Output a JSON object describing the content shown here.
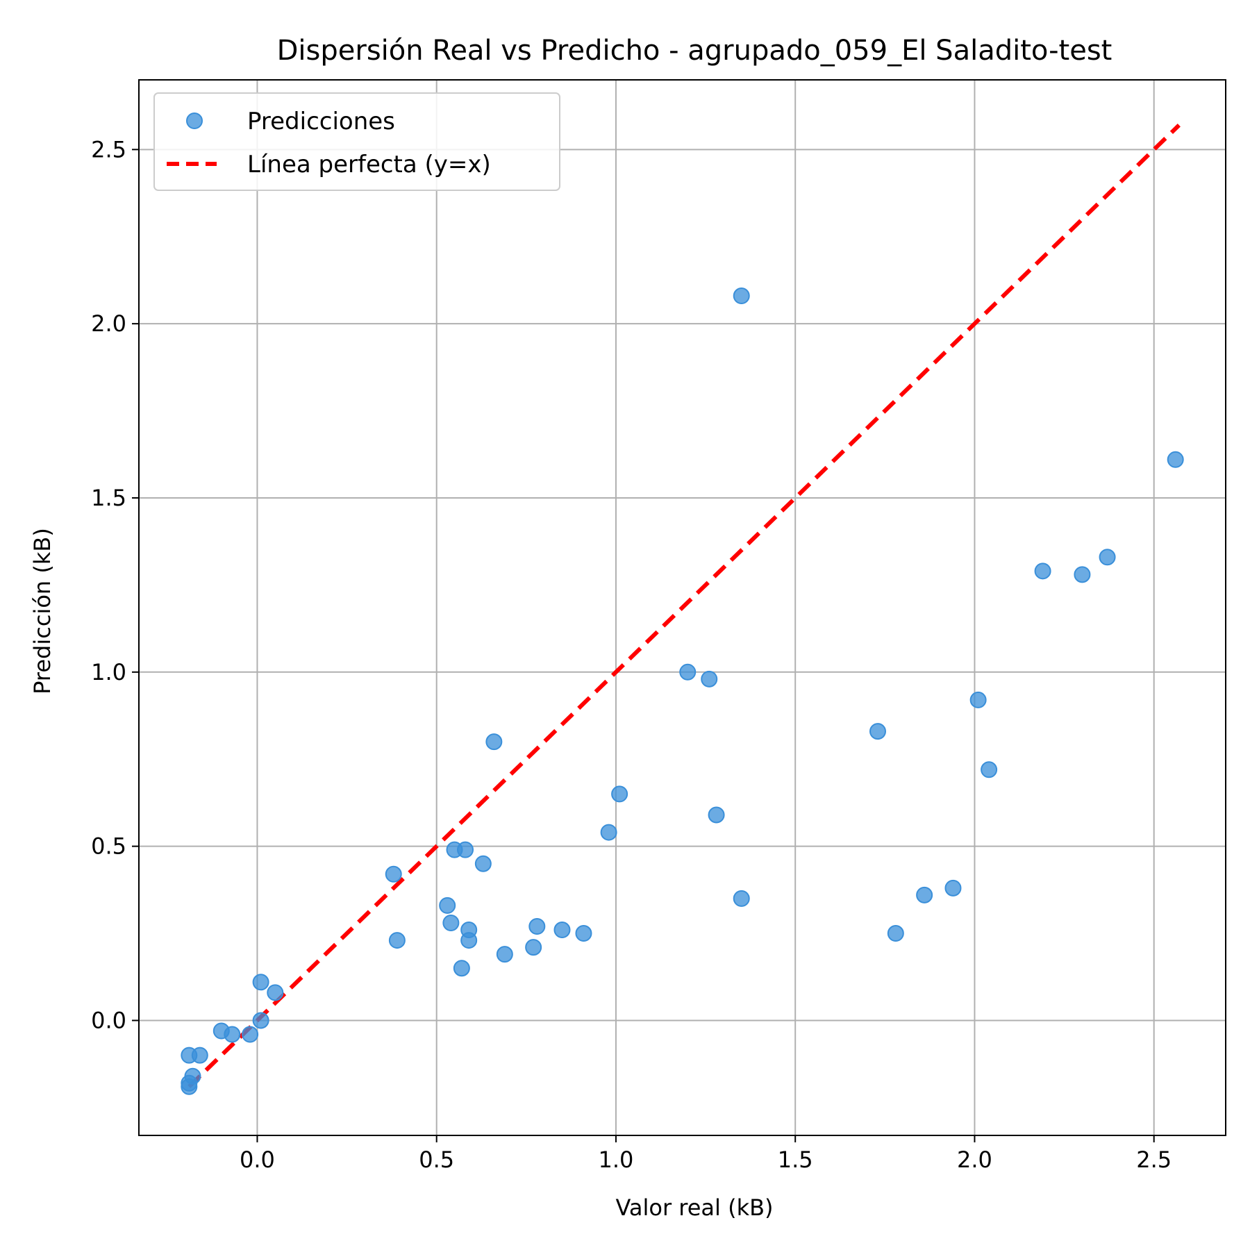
{
  "chart_data": {
    "type": "scatter",
    "title": "Dispersión Real vs Predicho - agrupado_059_El Saladito-test",
    "xlabel": "Valor real (kB)",
    "ylabel": "Predicción (kB)",
    "xlim": [
      -0.33,
      2.7
    ],
    "ylim": [
      -0.33,
      2.7
    ],
    "xticks": [
      0.0,
      0.5,
      1.0,
      1.5,
      2.0,
      2.5
    ],
    "yticks": [
      0.0,
      0.5,
      1.0,
      1.5,
      2.0,
      2.5
    ],
    "xtick_labels": [
      "0.0",
      "0.5",
      "1.0",
      "1.5",
      "2.0",
      "2.5"
    ],
    "ytick_labels": [
      "0.0",
      "0.5",
      "1.0",
      "1.5",
      "2.0",
      "2.5"
    ],
    "grid": true,
    "legend_position": "top-left",
    "point_color": "#3a8fd9",
    "line_color": "#ff0000",
    "series": [
      {
        "name": "Predicciones",
        "kind": "scatter",
        "x": [
          1.35,
          2.56,
          2.19,
          2.3,
          2.37,
          1.2,
          1.26,
          2.01,
          1.73,
          0.66,
          2.04,
          1.01,
          1.28,
          0.98,
          0.55,
          0.58,
          0.63,
          0.38,
          1.35,
          1.94,
          1.86,
          0.53,
          0.54,
          0.59,
          0.59,
          0.39,
          0.78,
          0.85,
          0.91,
          0.77,
          0.69,
          1.78,
          0.57,
          0.01,
          0.05,
          0.01,
          -0.1,
          -0.07,
          -0.02,
          -0.19,
          -0.16,
          -0.18,
          -0.19,
          -0.19
        ],
        "y": [
          2.08,
          1.61,
          1.29,
          1.28,
          1.33,
          1.0,
          0.98,
          0.92,
          0.83,
          0.8,
          0.72,
          0.65,
          0.59,
          0.54,
          0.49,
          0.49,
          0.45,
          0.42,
          0.35,
          0.38,
          0.36,
          0.33,
          0.28,
          0.26,
          0.23,
          0.23,
          0.27,
          0.26,
          0.25,
          0.21,
          0.19,
          0.25,
          0.15,
          0.11,
          0.08,
          0.0,
          -0.03,
          -0.04,
          -0.04,
          -0.1,
          -0.1,
          -0.16,
          -0.18,
          -0.19
        ]
      },
      {
        "name": "Línea perfecta (y=x)",
        "kind": "line",
        "x": [
          -0.19,
          2.57
        ],
        "y": [
          -0.19,
          2.57
        ]
      }
    ]
  }
}
